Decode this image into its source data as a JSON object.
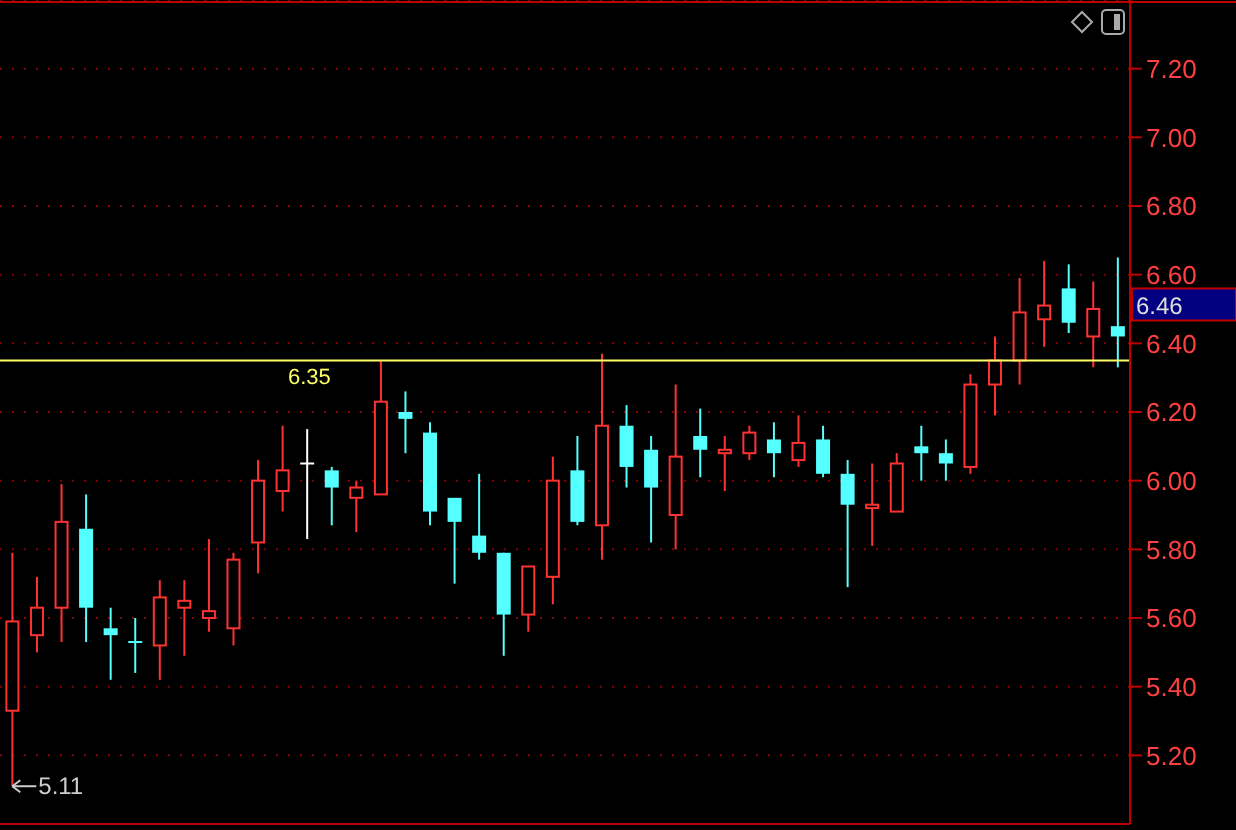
{
  "chart_data": {
    "type": "candlestick",
    "categories": [
      null,
      null,
      null,
      null,
      null,
      null,
      null,
      null,
      null,
      null,
      null,
      null,
      null,
      null,
      null,
      null,
      null,
      null,
      null,
      null,
      null,
      null,
      null,
      null,
      null,
      null,
      null,
      null,
      null,
      null,
      null,
      null,
      null,
      null,
      null,
      null,
      null,
      null,
      null,
      null,
      null,
      null,
      null,
      null,
      null,
      null
    ],
    "ohlc": [
      [
        5.33,
        5.79,
        5.11,
        5.59
      ],
      [
        5.55,
        5.72,
        5.5,
        5.63
      ],
      [
        5.63,
        5.99,
        5.53,
        5.88
      ],
      [
        5.86,
        5.96,
        5.53,
        5.63
      ],
      [
        5.57,
        5.63,
        5.42,
        5.55
      ],
      [
        5.53,
        5.6,
        5.44,
        5.53
      ],
      [
        5.52,
        5.71,
        5.42,
        5.66
      ],
      [
        5.63,
        5.71,
        5.49,
        5.65
      ],
      [
        5.6,
        5.83,
        5.56,
        5.62
      ],
      [
        5.57,
        5.79,
        5.52,
        5.77
      ],
      [
        5.82,
        6.06,
        5.73,
        6.0
      ],
      [
        5.97,
        6.16,
        5.91,
        6.03
      ],
      [
        6.05,
        6.15,
        5.83,
        6.05
      ],
      [
        6.03,
        6.04,
        5.87,
        5.98
      ],
      [
        5.95,
        6.0,
        5.85,
        5.98
      ],
      [
        5.96,
        6.35,
        5.96,
        6.23
      ],
      [
        6.2,
        6.26,
        6.08,
        6.18
      ],
      [
        6.14,
        6.17,
        5.87,
        5.91
      ],
      [
        5.95,
        5.95,
        5.7,
        5.88
      ],
      [
        5.84,
        6.02,
        5.77,
        5.79
      ],
      [
        5.79,
        5.79,
        5.49,
        5.61
      ],
      [
        5.61,
        5.75,
        5.56,
        5.75
      ],
      [
        5.72,
        6.07,
        5.64,
        6.0
      ],
      [
        6.03,
        6.13,
        5.87,
        5.88
      ],
      [
        5.87,
        6.37,
        5.77,
        6.16
      ],
      [
        6.16,
        6.22,
        5.98,
        6.04
      ],
      [
        6.09,
        6.13,
        5.82,
        5.98
      ],
      [
        5.9,
        6.28,
        5.8,
        6.07
      ],
      [
        6.13,
        6.21,
        6.01,
        6.09
      ],
      [
        6.08,
        6.13,
        5.97,
        6.09
      ],
      [
        6.08,
        6.16,
        6.06,
        6.14
      ],
      [
        6.12,
        6.17,
        6.01,
        6.08
      ],
      [
        6.06,
        6.19,
        6.04,
        6.11
      ],
      [
        6.12,
        6.16,
        6.01,
        6.02
      ],
      [
        6.02,
        6.06,
        5.69,
        5.93
      ],
      [
        5.92,
        6.05,
        5.81,
        5.93
      ],
      [
        5.91,
        6.08,
        5.91,
        6.05
      ],
      [
        6.1,
        6.16,
        6.0,
        6.08
      ],
      [
        6.08,
        6.12,
        6.0,
        6.05
      ],
      [
        6.04,
        6.31,
        6.02,
        6.28
      ],
      [
        6.28,
        6.42,
        6.19,
        6.35
      ],
      [
        6.35,
        6.59,
        6.28,
        6.49
      ],
      [
        6.47,
        6.64,
        6.39,
        6.51
      ],
      [
        6.56,
        6.63,
        6.43,
        6.46
      ],
      [
        6.42,
        6.58,
        6.33,
        6.5
      ],
      [
        6.45,
        6.65,
        6.33,
        6.42
      ]
    ],
    "colors": [
      "#ff3232",
      "#ff3232",
      "#ff3232",
      "#54ffff",
      "#54ffff",
      "#54ffff",
      "#ff3232",
      "#ff3232",
      "#ff3232",
      "#ff3232",
      "#ff3232",
      "#ff3232",
      "#ffffff",
      "#54ffff",
      "#ff3232",
      "#ff3232",
      "#54ffff",
      "#54ffff",
      "#54ffff",
      "#54ffff",
      "#54ffff",
      "#ff3232",
      "#ff3232",
      "#54ffff",
      "#ff3232",
      "#54ffff",
      "#54ffff",
      "#ff3232",
      "#54ffff",
      "#ff3232",
      "#ff3232",
      "#54ffff",
      "#ff3232",
      "#54ffff",
      "#54ffff",
      "#ff3232",
      "#ff3232",
      "#54ffff",
      "#54ffff",
      "#ff3232",
      "#ff3232",
      "#ff3232",
      "#ff3232",
      "#54ffff",
      "#ff3232",
      "#54ffff"
    ],
    "ylim": [
      5.0,
      7.4
    ],
    "yticks": [
      {
        "value": 5.2,
        "label": "5.20"
      },
      {
        "value": 5.4,
        "label": "5.40"
      },
      {
        "value": 5.6,
        "label": "5.60"
      },
      {
        "value": 5.8,
        "label": "5.80"
      },
      {
        "value": 6.0,
        "label": "6.00"
      },
      {
        "value": 6.2,
        "label": "6.20"
      },
      {
        "value": 6.4,
        "label": "6.40"
      },
      {
        "value": 6.6,
        "label": "6.60"
      },
      {
        "value": 6.8,
        "label": "6.80"
      },
      {
        "value": 7.0,
        "label": "7.00"
      },
      {
        "value": 7.2,
        "label": "7.20"
      }
    ],
    "grid": "y",
    "legend": false,
    "tick_labels": "y",
    "ref_lines": [
      {
        "axis": "y",
        "value": 6.35,
        "label": "6.35",
        "color": "#ffff66"
      }
    ],
    "annotations": [
      "5.11",
      "6.46"
    ]
  }
}
